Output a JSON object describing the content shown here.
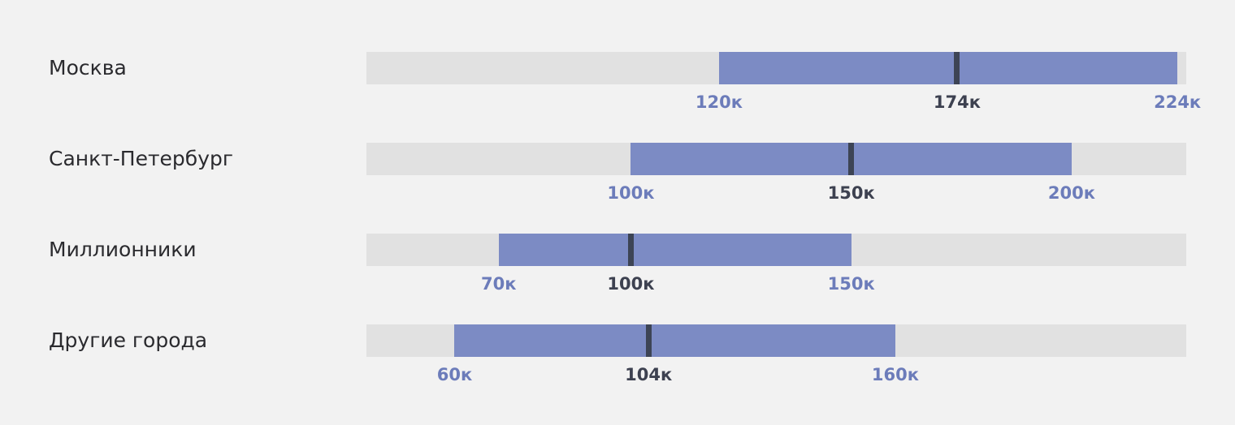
{
  "chart_data": {
    "type": "range-bar",
    "x_unit_suffix": "к",
    "xlim": [
      40,
      226
    ],
    "colors": {
      "track": "#e1e1e1",
      "range": "#7c8bc4",
      "median": "#3d4455",
      "range_label": "#6c7cba",
      "median_label": "#3d4150"
    },
    "rows": [
      {
        "category": "Москва",
        "min": 120,
        "median": 174,
        "max": 224,
        "min_label": "120к",
        "median_label": "174к",
        "max_label": "224к"
      },
      {
        "category": "Санкт-Петербург",
        "min": 100,
        "median": 150,
        "max": 200,
        "min_label": "100к",
        "median_label": "150к",
        "max_label": "200к"
      },
      {
        "category": "Миллионники",
        "min": 70,
        "median": 100,
        "max": 150,
        "min_label": "70к",
        "median_label": "100к",
        "max_label": "150к"
      },
      {
        "category": "Другие города",
        "min": 60,
        "median": 104,
        "max": 160,
        "min_label": "60к",
        "median_label": "104к",
        "max_label": "160к"
      }
    ]
  }
}
